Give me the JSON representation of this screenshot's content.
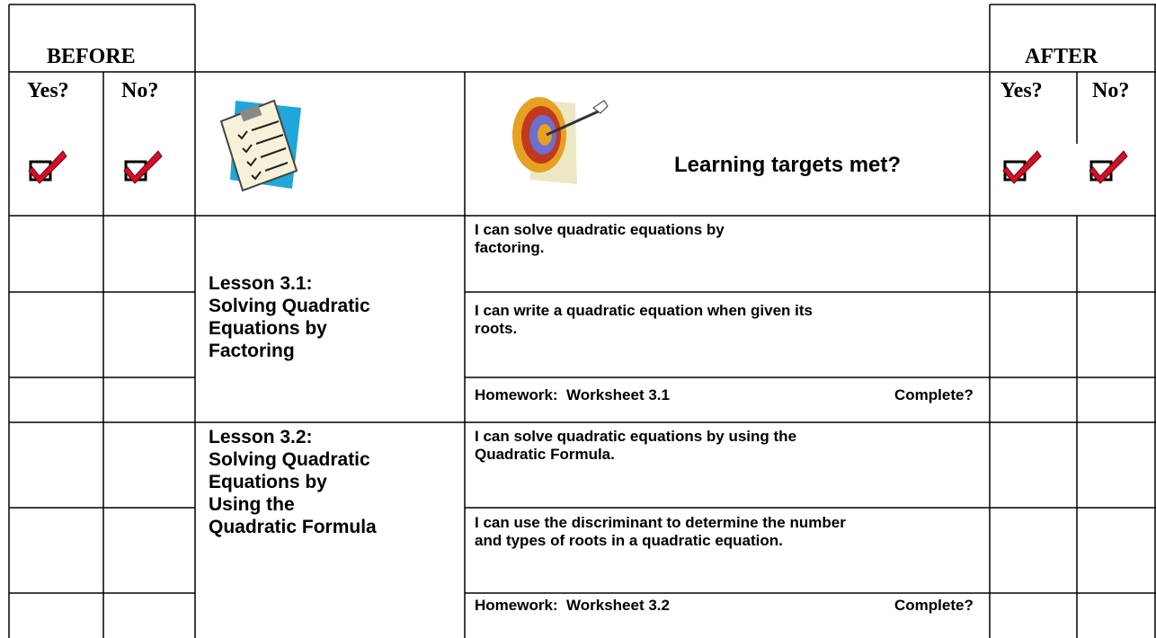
{
  "before": {
    "title": "BEFORE",
    "yes": "Yes?",
    "no": "No?"
  },
  "after": {
    "title": "AFTER",
    "yes": "Yes?",
    "no": "No?"
  },
  "header": {
    "targets": "Learning targets met?"
  },
  "lessons": [
    {
      "title": [
        "Lesson 3.1:",
        "Solving Quadratic",
        "Equations by",
        "Factoring"
      ],
      "targets": [
        "I can solve quadratic equations by factoring.",
        "I can write a quadratic equation when given its roots."
      ],
      "homework": "Homework:  Worksheet 3.1",
      "complete": "Complete?"
    },
    {
      "title": [
        "Lesson 3.2:",
        "Solving Quadratic",
        "Equations by",
        "Using the",
        "Quadratic Formula"
      ],
      "targets": [
        "I can solve quadratic equations by using the Quadratic Formula.",
        "I can use the discriminant to determine the number and types of roots in a quadratic equation."
      ],
      "homework": "Homework:  Worksheet 3.2",
      "complete": "Complete?"
    }
  ]
}
